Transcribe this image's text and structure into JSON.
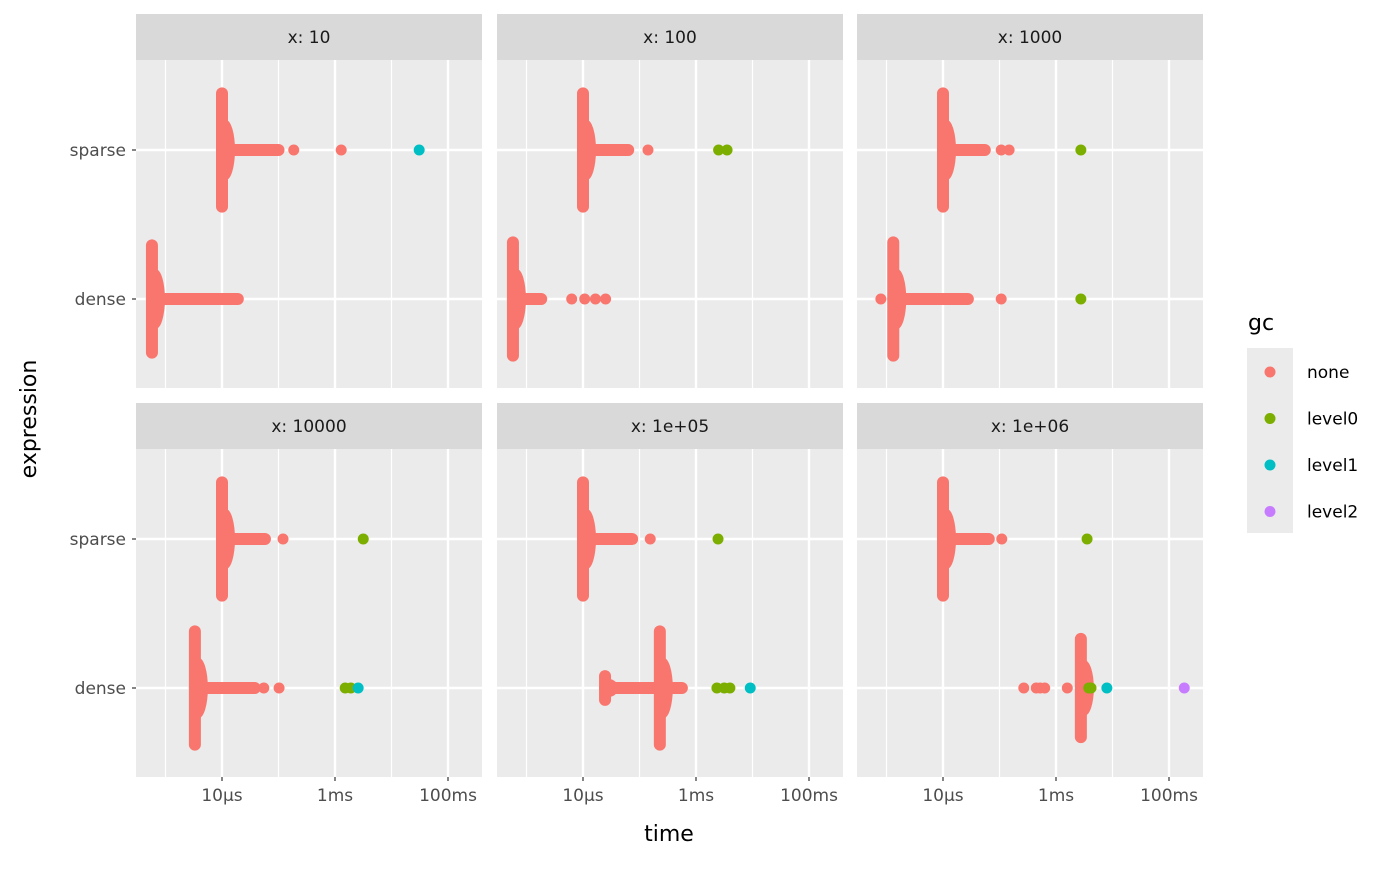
{
  "chart_data": {
    "type": "scatter",
    "subtype": "faceted beeswarm",
    "xlabel": "time",
    "ylabel": "expression",
    "x_scale": "log10 seconds",
    "xlim_log10": [
      -6.52,
      -0.4
    ],
    "x_ticks": [
      {
        "value": -5,
        "label": "10µs"
      },
      {
        "value": -3,
        "label": "1ms"
      },
      {
        "value": -1,
        "label": "100ms"
      }
    ],
    "x_minor": [
      -6,
      -4,
      -2
    ],
    "categories": [
      "sparse",
      "dense"
    ],
    "legend": {
      "title": "gc",
      "position": "right",
      "entries": [
        {
          "label": "none",
          "color": "#F8766D"
        },
        {
          "label": "level0",
          "color": "#7CAE00"
        },
        {
          "label": "level1",
          "color": "#00BFC4"
        },
        {
          "label": "level2",
          "color": "#C77CFF"
        }
      ]
    },
    "facets": [
      {
        "label": "x: 10",
        "groups": {
          "sparse": {
            "clusters": [
              {
                "center": -5.0,
                "spread": 0.42
              }
            ],
            "tail_end": -4.0,
            "points": [
              [
                -3.73,
                "none"
              ],
              [
                -2.89,
                "none"
              ],
              [
                -1.51,
                "level1"
              ]
            ]
          },
          "dense": {
            "clusters": [
              {
                "center": -6.24,
                "spread": 0.4
              }
            ],
            "tail_end": -4.72,
            "points": [
              [
                -5.3,
                "none"
              ]
            ]
          }
        }
      },
      {
        "label": "x: 100",
        "groups": {
          "sparse": {
            "clusters": [
              {
                "center": -5.0,
                "spread": 0.42
              }
            ],
            "tail_end": -4.2,
            "points": [
              [
                -3.85,
                "none"
              ],
              [
                -2.6,
                "level0"
              ],
              [
                -2.45,
                "level0"
              ]
            ]
          },
          "dense": {
            "clusters": [
              {
                "center": -6.24,
                "spread": 0.42
              }
            ],
            "tail_end": -5.74,
            "points": [
              [
                -5.2,
                "none"
              ],
              [
                -4.97,
                "none"
              ],
              [
                -4.78,
                "none"
              ],
              [
                -4.6,
                "none"
              ]
            ]
          }
        }
      },
      {
        "label": "x: 1000",
        "groups": {
          "sparse": {
            "clusters": [
              {
                "center": -5.0,
                "spread": 0.42
              }
            ],
            "tail_end": -4.26,
            "points": [
              [
                -3.97,
                "none"
              ],
              [
                -3.83,
                "none"
              ],
              [
                -2.56,
                "level0"
              ]
            ]
          },
          "dense": {
            "clusters": [
              {
                "center": -5.88,
                "spread": 0.42
              }
            ],
            "tail_end": -4.56,
            "points": [
              [
                -6.1,
                "none"
              ],
              [
                -3.97,
                "none"
              ],
              [
                -2.56,
                "level0"
              ]
            ]
          }
        }
      },
      {
        "label": "x: 10000",
        "groups": {
          "sparse": {
            "clusters": [
              {
                "center": -5.0,
                "spread": 0.42
              }
            ],
            "tail_end": -4.24,
            "points": [
              [
                -3.92,
                "none"
              ],
              [
                -2.5,
                "level0"
              ]
            ]
          },
          "dense": {
            "clusters": [
              {
                "center": -5.48,
                "spread": 0.42
              }
            ],
            "tail_end": -4.42,
            "points": [
              [
                -4.26,
                "none"
              ],
              [
                -3.99,
                "none"
              ],
              [
                -2.82,
                "level0"
              ],
              [
                -2.72,
                "level0"
              ],
              [
                -2.59,
                "level1"
              ]
            ]
          }
        }
      },
      {
        "label": "x: 1e+05",
        "groups": {
          "sparse": {
            "clusters": [
              {
                "center": -5.0,
                "spread": 0.42
              }
            ],
            "tail_end": -4.13,
            "points": [
              [
                -3.81,
                "none"
              ],
              [
                -2.61,
                "level0"
              ]
            ]
          },
          "dense": {
            "clusters": [
              {
                "center": -4.61,
                "spread": 0.12
              },
              {
                "center": -3.64,
                "spread": 0.42
              }
            ],
            "tail_end": -3.25,
            "points": [
              [
                -2.63,
                "level0"
              ],
              [
                -2.5,
                "level0"
              ],
              [
                -2.4,
                "level0"
              ],
              [
                -2.04,
                "level1"
              ]
            ]
          }
        }
      },
      {
        "label": "x: 1e+06",
        "groups": {
          "sparse": {
            "clusters": [
              {
                "center": -5.0,
                "spread": 0.42
              }
            ],
            "tail_end": -4.19,
            "points": [
              [
                -3.96,
                "none"
              ],
              [
                -2.45,
                "level0"
              ]
            ]
          },
          "dense": {
            "clusters": [
              {
                "center": -2.56,
                "spread": 0.37
              }
            ],
            "tail_end": -2.56,
            "points": [
              [
                -3.57,
                "none"
              ],
              [
                -3.35,
                "none"
              ],
              [
                -3.28,
                "none"
              ],
              [
                -3.2,
                "none"
              ],
              [
                -2.8,
                "none"
              ],
              [
                -2.42,
                "level0"
              ],
              [
                -2.38,
                "level0"
              ],
              [
                -2.1,
                "level1"
              ],
              [
                -0.73,
                "level2"
              ]
            ]
          }
        }
      }
    ]
  }
}
